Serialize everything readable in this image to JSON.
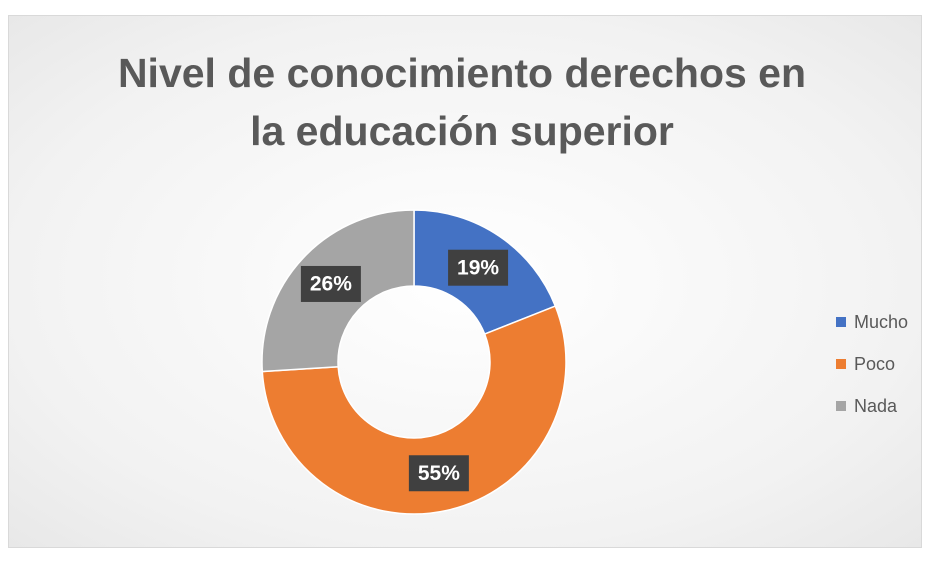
{
  "chart_data": {
    "type": "donut",
    "title": "Nivel de conocimiento derechos en la educación superior",
    "categories": [
      "Mucho",
      "Poco",
      "Nada"
    ],
    "values": [
      19,
      55,
      26
    ],
    "value_labels": [
      "19%",
      "55%",
      "26%"
    ],
    "colors": [
      "#4472c4",
      "#ed7d31",
      "#a5a5a5"
    ],
    "legend": "right"
  }
}
